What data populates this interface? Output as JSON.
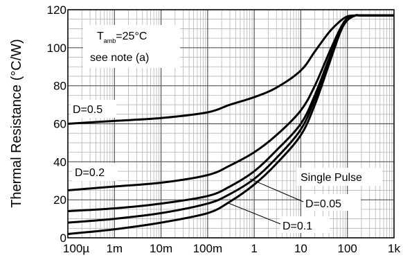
{
  "chart_data": {
    "type": "line",
    "title": "",
    "xlabel": "",
    "ylabel": "Thermal Resistance (°C/W)",
    "x_scale": "log",
    "x_ticks": [
      0.0001,
      0.001,
      0.01,
      0.1,
      1,
      10,
      100,
      1000
    ],
    "x_tick_labels": [
      "100µ",
      "1m",
      "10m",
      "100m",
      "1",
      "10",
      "100",
      "1k"
    ],
    "y_ticks": [
      0,
      20,
      40,
      60,
      80,
      100,
      120
    ],
    "y_tick_labels": [
      "0",
      "20",
      "40",
      "60",
      "80",
      "100",
      "120"
    ],
    "xlim": [
      0.0001,
      1000
    ],
    "ylim": [
      0,
      120
    ],
    "grid": true,
    "annotation": {
      "line1_main": "T",
      "line1_sub": "amb",
      "line1_rest": "=25°C",
      "line2": "see note (a)"
    },
    "series": [
      {
        "name": "D=0.5",
        "x": [
          0.0001,
          0.001,
          0.01,
          0.1,
          0.3,
          1,
          3,
          10,
          20,
          40,
          70,
          100,
          150,
          200,
          1000
        ],
        "y": [
          60,
          61.5,
          63,
          66,
          70,
          74,
          79,
          88,
          98,
          108,
          114,
          116.5,
          117,
          117,
          117
        ]
      },
      {
        "name": "D=0.2",
        "x": [
          0.0001,
          0.001,
          0.01,
          0.1,
          0.3,
          1,
          3,
          10,
          20,
          40,
          70,
          100,
          150,
          200,
          1000
        ],
        "y": [
          25,
          27,
          29,
          33,
          38,
          45,
          54,
          67,
          80,
          97,
          110,
          115.5,
          117,
          117,
          117
        ]
      },
      {
        "name": "",
        "x": [
          0.0001,
          0.001,
          0.01,
          0.1,
          0.3,
          1,
          3,
          10,
          20,
          40,
          70,
          100,
          150,
          200,
          1000
        ],
        "y": [
          14,
          15.5,
          18,
          22,
          27,
          35,
          46,
          60,
          75,
          94,
          109,
          115,
          117,
          117,
          117
        ]
      },
      {
        "name": "D=0.05",
        "x": [
          0.0001,
          0.001,
          0.01,
          0.1,
          0.3,
          1,
          3,
          10,
          20,
          40,
          70,
          100,
          150,
          200,
          1000
        ],
        "y": [
          8,
          10,
          13,
          18,
          23,
          31,
          42,
          57,
          73,
          93,
          108.5,
          114.5,
          117,
          117,
          117
        ]
      },
      {
        "name": "D=0.1",
        "x": [
          0.0001,
          0.001,
          0.01,
          0.1,
          0.3,
          1,
          3,
          10,
          20,
          40,
          70,
          100,
          150,
          200,
          1000
        ],
        "y": [
          2,
          4.5,
          8,
          13,
          19,
          28,
          39,
          54,
          70,
          91,
          108,
          114.5,
          117,
          117,
          117
        ]
      },
      {
        "name": "Single Pulse",
        "x": [],
        "y": []
      }
    ],
    "labels": {
      "d05": "D=0.5",
      "d02": "D=0.2",
      "single": "Single Pulse",
      "d005": "D=0.05",
      "d01": "D=0.1"
    }
  }
}
